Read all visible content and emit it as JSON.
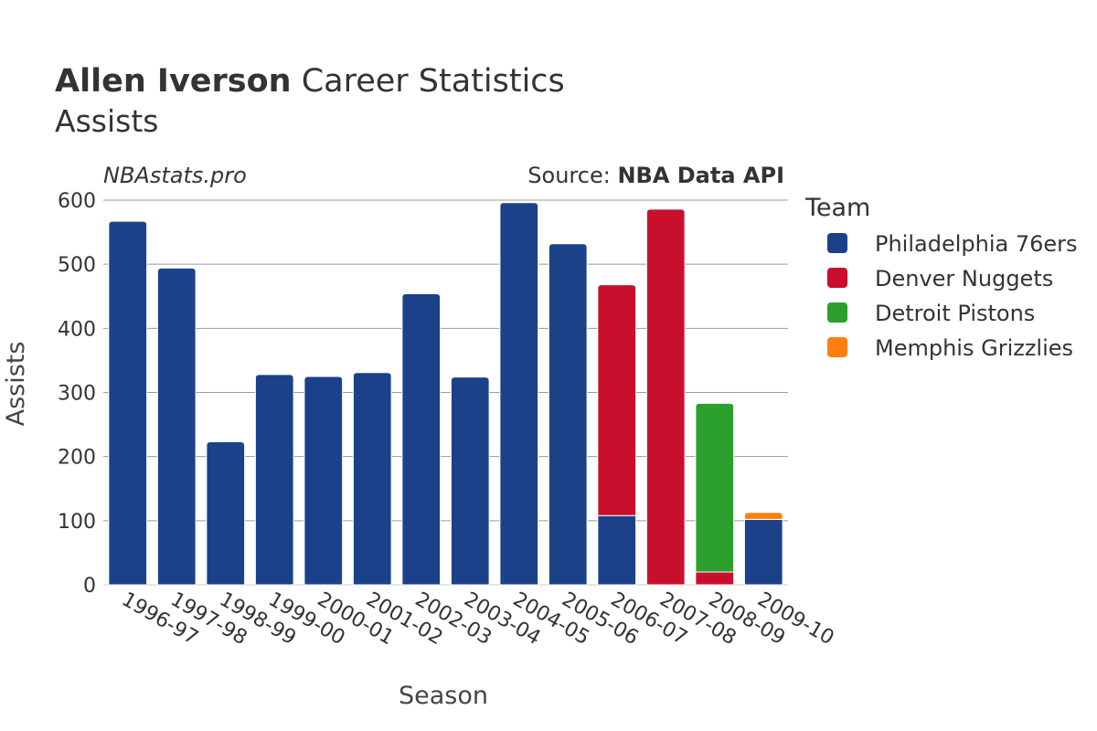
{
  "header": {
    "title_player": "Allen Iverson",
    "title_rest": " Career Statistics",
    "subtitle": "Assists",
    "watermark": "NBAstats.pro",
    "source_prefix": "Source: ",
    "source_name": "NBA Data API"
  },
  "legend": {
    "title": "Team"
  },
  "chart_data": {
    "type": "bar",
    "stacked": true,
    "title": "Allen Iverson Career Statistics",
    "subtitle": "Assists",
    "xlabel": "Season",
    "ylabel": "Assists",
    "ylim": [
      0,
      600
    ],
    "yticks": [
      0,
      100,
      200,
      300,
      400,
      500,
      600
    ],
    "grid": true,
    "legend_position": "right",
    "categories": [
      "1996-97",
      "1997-98",
      "1998-99",
      "1999-00",
      "2000-01",
      "2001-02",
      "2002-03",
      "2003-04",
      "2004-05",
      "2005-06",
      "2006-07",
      "2007-08",
      "2008-09",
      "2009-10"
    ],
    "series": [
      {
        "name": "Philadelphia 76ers",
        "color": "#1b4289",
        "values": [
          567,
          494,
          223,
          328,
          325,
          331,
          454,
          324,
          596,
          532,
          108,
          0,
          0,
          102
        ]
      },
      {
        "name": "Denver Nuggets",
        "color": "#c8102e",
        "values": [
          0,
          0,
          0,
          0,
          0,
          0,
          0,
          0,
          0,
          0,
          360,
          586,
          20,
          0
        ]
      },
      {
        "name": "Detroit Pistons",
        "color": "#2ca02c",
        "values": [
          0,
          0,
          0,
          0,
          0,
          0,
          0,
          0,
          0,
          0,
          0,
          0,
          263,
          0
        ]
      },
      {
        "name": "Memphis Grizzlies",
        "color": "#ff7f0e",
        "values": [
          0,
          0,
          0,
          0,
          0,
          0,
          0,
          0,
          0,
          0,
          0,
          0,
          0,
          11
        ]
      }
    ]
  }
}
